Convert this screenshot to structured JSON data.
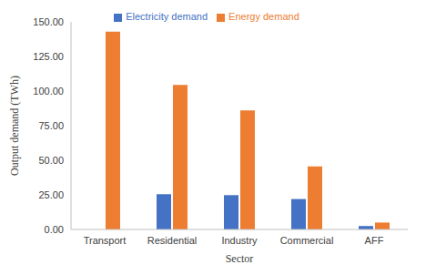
{
  "chart_data": {
    "type": "bar",
    "x_label": "Sector",
    "y_label": "Output demand (TWh)",
    "categories": [
      "Transport",
      "Residential",
      "Industry",
      "Commercial",
      "AFF"
    ],
    "series": [
      {
        "name": "Electricity demand",
        "color": "#4472c4",
        "values": [
          0,
          25.5,
          24.8,
          22,
          2.5
        ]
      },
      {
        "name": "Energy demand",
        "color": "#ed7d31",
        "values": [
          143,
          104.5,
          86,
          45.5,
          5
        ]
      }
    ],
    "ylim": [
      0,
      150
    ],
    "yticks": [
      {
        "value": 0,
        "label": "0.00"
      },
      {
        "value": 25,
        "label": "25.00"
      },
      {
        "value": 50,
        "label": "50.00"
      },
      {
        "value": 75,
        "label": "75.00"
      },
      {
        "value": 100,
        "label": "100.00"
      },
      {
        "value": 125,
        "label": "125.00"
      },
      {
        "value": 150,
        "label": "150.00"
      }
    ],
    "grid": false,
    "legend": "top"
  }
}
